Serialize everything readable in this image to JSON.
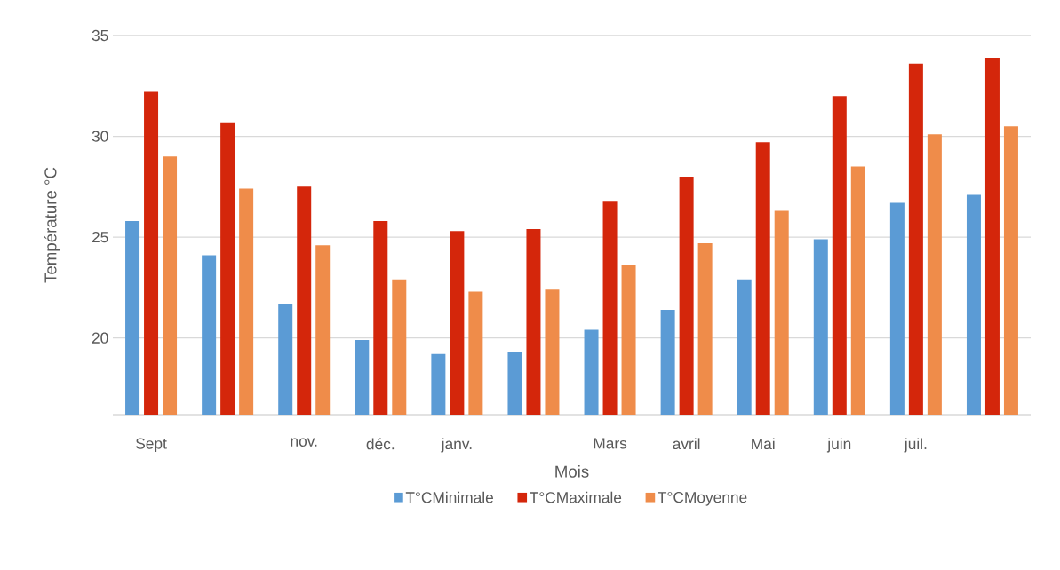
{
  "chart_data": {
    "type": "bar",
    "xlabel": "Mois",
    "ylabel": "Température °C",
    "categories": [
      "Sept",
      null,
      "nov.",
      "déc.",
      "janv.",
      null,
      "Mars",
      "avril",
      "Mai",
      "juin",
      "juil.",
      null
    ],
    "series": [
      {
        "name": "T°CMinimale",
        "color": "#5b9bd5",
        "values": [
          25.8,
          24.1,
          21.7,
          19.9,
          19.2,
          19.3,
          20.4,
          21.4,
          22.9,
          24.9,
          26.7,
          27.1
        ]
      },
      {
        "name": "T°CMaximale",
        "color": "#d4260b",
        "values": [
          32.2,
          30.7,
          27.5,
          25.8,
          25.3,
          25.4,
          26.8,
          28.0,
          29.7,
          32.0,
          33.6,
          33.9
        ]
      },
      {
        "name": "T°CMoyenne",
        "color": "#ef8c4a",
        "values": [
          29.0,
          27.4,
          24.6,
          22.9,
          22.3,
          22.4,
          23.6,
          24.7,
          26.3,
          28.5,
          30.1,
          30.5
        ]
      }
    ],
    "ylim": [
      16.2,
      35
    ],
    "yticks": [
      20,
      25,
      30,
      35
    ],
    "grid": "y",
    "legend": "bottom"
  }
}
